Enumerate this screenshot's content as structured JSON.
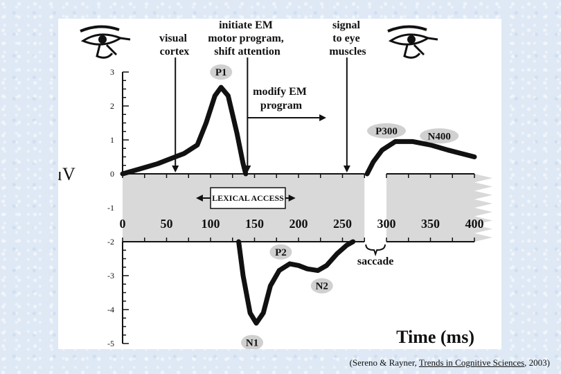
{
  "annotations": {
    "visual_cortex": [
      "visual",
      "cortex"
    ],
    "initiate_em": [
      "initiate EM",
      "motor program,",
      "shift attention"
    ],
    "signal": [
      "signal",
      "to eye",
      "muscles"
    ],
    "modify_em": [
      "modify EM",
      "program"
    ],
    "lexical_access": "LEXICAL ACCESS",
    "saccade": "saccade"
  },
  "citation": {
    "open": "(Sereno & Rayner, ",
    "journal": "Trends in Cognitive Sciences",
    "close": ", 2003)"
  },
  "chart_data": {
    "type": "line",
    "xlabel": "Time (ms)",
    "ylabel": "μV",
    "xlim": [
      0,
      400
    ],
    "ylim": [
      -5,
      3
    ],
    "x_ticks": [
      0,
      50,
      100,
      150,
      200,
      250,
      300,
      350,
      400
    ],
    "y_ticks": [
      3,
      2,
      1,
      0,
      -1,
      -2,
      -3,
      -4,
      -5
    ],
    "series": [
      {
        "polarity": "positive",
        "points": [
          [
            0,
            0
          ],
          [
            20,
            0.15
          ],
          [
            40,
            0.3
          ],
          [
            55,
            0.45
          ],
          [
            70,
            0.6
          ],
          [
            85,
            0.85
          ],
          [
            95,
            1.5
          ],
          [
            105,
            2.3
          ],
          [
            112,
            2.55
          ],
          [
            120,
            2.3
          ],
          [
            130,
            1.2
          ],
          [
            137,
            0.3
          ],
          [
            140,
            0
          ]
        ],
        "points_after_saccade": [
          [
            278,
            0
          ],
          [
            285,
            0.35
          ],
          [
            295,
            0.7
          ],
          [
            310,
            0.95
          ],
          [
            330,
            0.95
          ],
          [
            350,
            0.85
          ],
          [
            370,
            0.7
          ],
          [
            385,
            0.6
          ],
          [
            400,
            0.5
          ]
        ]
      },
      {
        "polarity": "negative",
        "points": [
          [
            132,
            -2
          ],
          [
            137,
            -3
          ],
          [
            145,
            -4.1
          ],
          [
            152,
            -4.4
          ],
          [
            160,
            -4.1
          ],
          [
            168,
            -3.3
          ],
          [
            178,
            -2.85
          ],
          [
            190,
            -2.65
          ],
          [
            200,
            -2.7
          ],
          [
            210,
            -2.8
          ],
          [
            222,
            -2.85
          ],
          [
            232,
            -2.7
          ],
          [
            244,
            -2.35
          ],
          [
            255,
            -2.1
          ],
          [
            262,
            -2
          ]
        ]
      }
    ],
    "peaks": [
      {
        "label": "P1",
        "x": 112,
        "y": 2.55
      },
      {
        "label": "P300",
        "x": 300,
        "y": 0.9
      },
      {
        "label": "N400",
        "x": 360,
        "y": 0.75
      },
      {
        "label": "P2",
        "x": 183,
        "y": -2.75
      },
      {
        "label": "N2",
        "x": 225,
        "y": -2.85
      },
      {
        "label": "N1",
        "x": 152,
        "y": -4.4
      }
    ],
    "event_markers": [
      {
        "name": "visual cortex",
        "x": 60
      },
      {
        "name": "initiate EM",
        "x": 142
      },
      {
        "name": "signal",
        "x": 255
      }
    ],
    "lexical_access_range": [
      85,
      195
    ],
    "modify_em_range": [
      142,
      230
    ],
    "saccade_range": [
      275,
      300
    ]
  }
}
